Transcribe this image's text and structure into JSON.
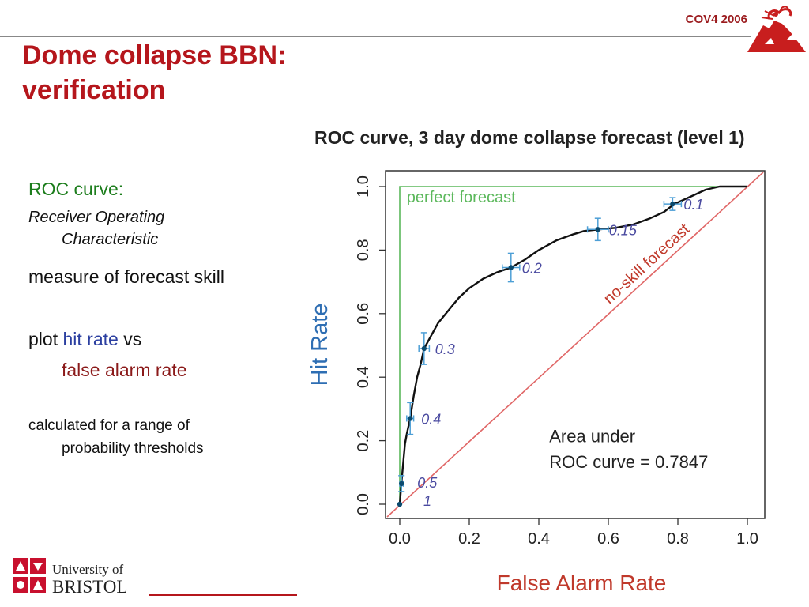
{
  "header": {
    "tag": "COV4 2006",
    "logo_icon": "volcano-logo-icon"
  },
  "slide": {
    "title_line1": "Dome collapse BBN:",
    "title_line2": "verification"
  },
  "bullets": {
    "roc_heading": "ROC curve:",
    "roc_desc_line1": "Receiver Operating",
    "roc_desc_line2": "Characteristic",
    "measure": "measure of forecast skill",
    "plot_prefix": "plot ",
    "hit_rate": "hit rate",
    "vs": " vs",
    "false_alarm_rate": "false alarm rate",
    "calc_line1": "calculated for a range of",
    "calc_line2": "probability thresholds"
  },
  "footer": {
    "university_line1": "University of",
    "university_line2": "BRISTOL",
    "logo_icon": "university-of-bristol-crest-icon"
  },
  "colors": {
    "title_red": "#b5161c",
    "green": "#1c7d1c",
    "blue": "#2b3fa0",
    "dark_red": "#8b1a1a",
    "axis_blue": "#2e6eb3",
    "axis_red": "#c0392b",
    "errbar_blue": "#4d9fd6",
    "nice_red": "#e06666",
    "perfect_green": "#5cb85c",
    "label_blue": "#4a4aa0"
  },
  "chart_data": {
    "type": "line",
    "title": "ROC curve, 3 day dome collapse forecast (level 1)",
    "xlabel": "False Alarm Rate",
    "ylabel": "Hit Rate",
    "xlim": [
      0,
      1
    ],
    "ylim": [
      0,
      1
    ],
    "xticks": [
      "0.0",
      "0.2",
      "0.4",
      "0.6",
      "0.8",
      "1.0"
    ],
    "yticks": [
      "0.0",
      "0.2",
      "0.4",
      "0.6",
      "0.8",
      "1.0"
    ],
    "grid": false,
    "curve": [
      [
        0,
        0
      ],
      [
        0.003,
        0.04
      ],
      [
        0.005,
        0.07
      ],
      [
        0.01,
        0.13
      ],
      [
        0.015,
        0.19
      ],
      [
        0.02,
        0.22
      ],
      [
        0.03,
        0.27
      ],
      [
        0.04,
        0.34
      ],
      [
        0.05,
        0.4
      ],
      [
        0.06,
        0.44
      ],
      [
        0.07,
        0.49
      ],
      [
        0.09,
        0.53
      ],
      [
        0.11,
        0.57
      ],
      [
        0.14,
        0.61
      ],
      [
        0.17,
        0.65
      ],
      [
        0.2,
        0.68
      ],
      [
        0.24,
        0.71
      ],
      [
        0.28,
        0.73
      ],
      [
        0.32,
        0.745
      ],
      [
        0.36,
        0.77
      ],
      [
        0.4,
        0.8
      ],
      [
        0.45,
        0.83
      ],
      [
        0.5,
        0.85
      ],
      [
        0.53,
        0.86
      ],
      [
        0.57,
        0.865
      ],
      [
        0.62,
        0.87
      ],
      [
        0.67,
        0.88
      ],
      [
        0.72,
        0.9
      ],
      [
        0.76,
        0.92
      ],
      [
        0.79,
        0.945
      ],
      [
        0.84,
        0.97
      ],
      [
        0.88,
        0.99
      ],
      [
        0.92,
        1.0
      ],
      [
        1,
        1
      ]
    ],
    "thresholds": [
      {
        "label": "1",
        "x": 0.0,
        "y": 0.0,
        "xerr": 0,
        "yerr": 0
      },
      {
        "label": "0.5",
        "x": 0.005,
        "y": 0.065,
        "xerr": 0.005,
        "yerr": 0.025
      },
      {
        "label": "0.4",
        "x": 0.03,
        "y": 0.27,
        "xerr": 0.01,
        "yerr": 0.05
      },
      {
        "label": "0.3",
        "x": 0.07,
        "y": 0.49,
        "xerr": 0.015,
        "yerr": 0.05
      },
      {
        "label": "0.2",
        "x": 0.32,
        "y": 0.745,
        "xerr": 0.025,
        "yerr": 0.045
      },
      {
        "label": "0.15",
        "x": 0.57,
        "y": 0.865,
        "xerr": 0.03,
        "yerr": 0.035
      },
      {
        "label": "0.1",
        "x": 0.785,
        "y": 0.945,
        "xerr": 0.025,
        "yerr": 0.02
      }
    ],
    "reference_lines": {
      "perfect_label": "perfect forecast",
      "no_skill_label": "no-skill forecast"
    },
    "annotation_line1": "Area under",
    "annotation_line2": "ROC curve =  0.7847"
  }
}
